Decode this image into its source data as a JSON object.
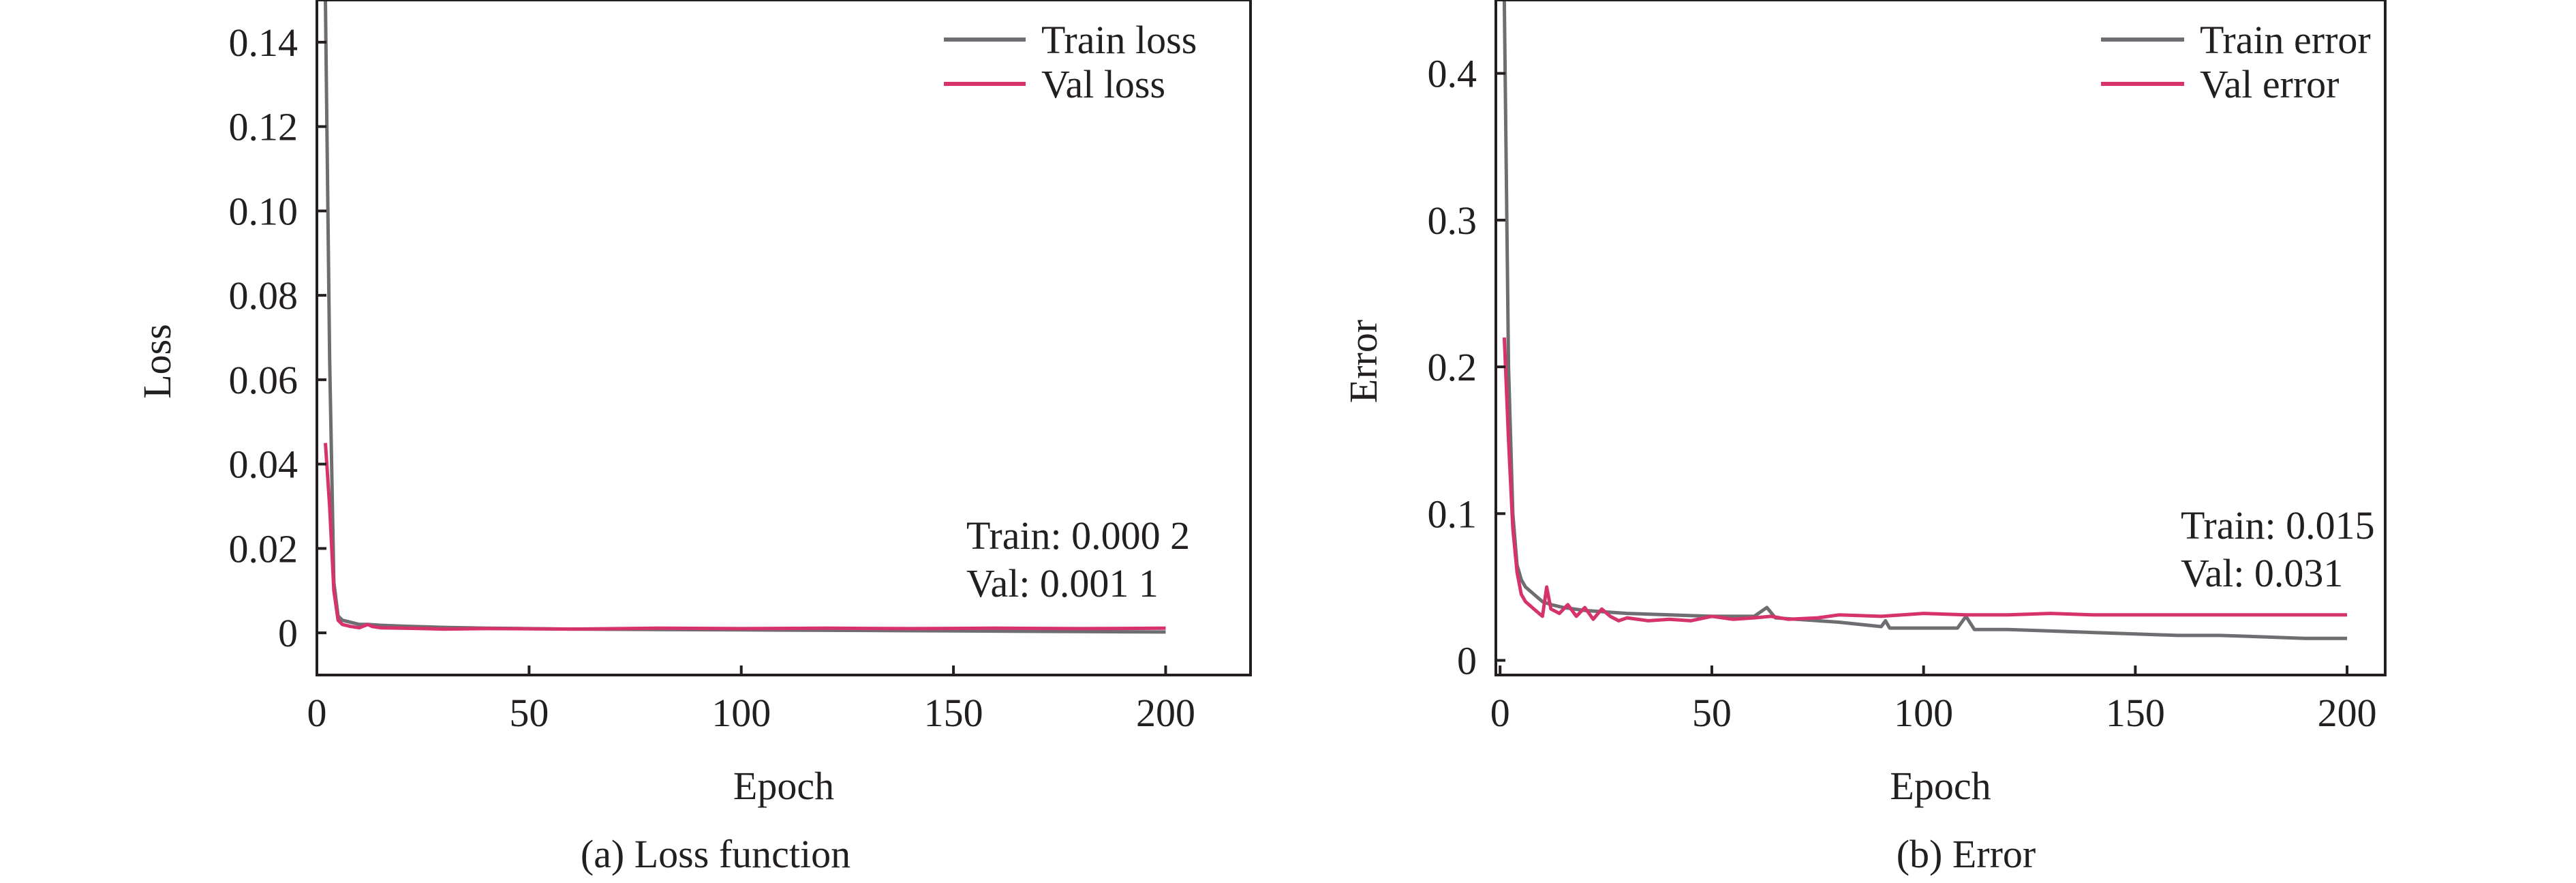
{
  "chart_data": [
    {
      "type": "line",
      "caption": "(a) Loss function",
      "xlabel": "Epoch",
      "ylabel": "Loss",
      "xlim": [
        0,
        220
      ],
      "ylim": [
        -0.01,
        0.15
      ],
      "xticks": [
        0,
        50,
        100,
        150,
        200
      ],
      "xtick_labels": [
        "0",
        "50",
        "100",
        "150",
        "200"
      ],
      "yticks": [
        0,
        0.02,
        0.04,
        0.06,
        0.08,
        0.1,
        0.12,
        0.14
      ],
      "ytick_labels": [
        "0",
        "0.02",
        "0.04",
        "0.06",
        "0.08",
        "0.10",
        "0.12",
        "0.14"
      ],
      "legend_position": "top-right",
      "grid": false,
      "annotations": [
        "Train: 0.000 2",
        "Val: 0.001 1"
      ],
      "series": [
        {
          "name": "Train loss",
          "color": "#6d6e71",
          "x": [
            2,
            3,
            4,
            5,
            6,
            8,
            10,
            12,
            15,
            20,
            30,
            40,
            60,
            80,
            100,
            120,
            140,
            160,
            180,
            200
          ],
          "y": [
            0.15,
            0.065,
            0.012,
            0.004,
            0.003,
            0.0025,
            0.002,
            0.002,
            0.0018,
            0.0016,
            0.0013,
            0.0011,
            0.0009,
            0.0008,
            0.0007,
            0.0006,
            0.0005,
            0.0004,
            0.0003,
            0.0002
          ]
        },
        {
          "name": "Val loss",
          "color": "#d6336c",
          "x": [
            2,
            3,
            4,
            5,
            6,
            8,
            10,
            12,
            13,
            15,
            20,
            25,
            30,
            40,
            60,
            80,
            100,
            120,
            140,
            160,
            180,
            200
          ],
          "y": [
            0.045,
            0.03,
            0.01,
            0.003,
            0.002,
            0.0015,
            0.0012,
            0.002,
            0.0015,
            0.0012,
            0.0011,
            0.001,
            0.0009,
            0.001,
            0.0009,
            0.0011,
            0.001,
            0.0011,
            0.001,
            0.0011,
            0.001,
            0.0011
          ]
        }
      ]
    },
    {
      "type": "line",
      "caption": "(b) Error",
      "xlabel": "Epoch",
      "ylabel": "Error",
      "xlim": [
        -1,
        209
      ],
      "ylim": [
        -0.01,
        0.45
      ],
      "xticks": [
        0,
        50,
        100,
        150,
        200
      ],
      "xtick_labels": [
        "0",
        "50",
        "100",
        "150",
        "200"
      ],
      "yticks": [
        0,
        0.1,
        0.2,
        0.3,
        0.4
      ],
      "ytick_labels": [
        "0",
        "0.1",
        "0.2",
        "0.3",
        "0.4"
      ],
      "legend_position": "top-right",
      "grid": false,
      "annotations": [
        "Train: 0.015",
        "Val: 0.031"
      ],
      "series": [
        {
          "name": "Train error",
          "color": "#6d6e71",
          "x": [
            1,
            2,
            3,
            4,
            5,
            6,
            8,
            10,
            12,
            15,
            20,
            25,
            30,
            40,
            50,
            60,
            63,
            65,
            70,
            80,
            90,
            91,
            92,
            100,
            108,
            110,
            112,
            120,
            130,
            140,
            150,
            160,
            170,
            180,
            190,
            200
          ],
          "y": [
            0.45,
            0.2,
            0.1,
            0.065,
            0.055,
            0.05,
            0.045,
            0.04,
            0.038,
            0.036,
            0.034,
            0.033,
            0.032,
            0.031,
            0.03,
            0.03,
            0.036,
            0.029,
            0.028,
            0.026,
            0.023,
            0.027,
            0.022,
            0.022,
            0.022,
            0.03,
            0.021,
            0.021,
            0.02,
            0.019,
            0.018,
            0.017,
            0.017,
            0.016,
            0.015,
            0.015
          ]
        },
        {
          "name": "Val error",
          "color": "#d6336c",
          "x": [
            1,
            2,
            3,
            4,
            5,
            6,
            8,
            10,
            11,
            12,
            14,
            16,
            18,
            20,
            22,
            24,
            26,
            28,
            30,
            35,
            40,
            45,
            50,
            55,
            60,
            64,
            68,
            75,
            80,
            90,
            100,
            110,
            120,
            130,
            140,
            150,
            160,
            170,
            180,
            190,
            200
          ],
          "y": [
            0.22,
            0.15,
            0.09,
            0.06,
            0.045,
            0.04,
            0.035,
            0.03,
            0.05,
            0.035,
            0.032,
            0.038,
            0.03,
            0.036,
            0.028,
            0.035,
            0.03,
            0.027,
            0.029,
            0.027,
            0.028,
            0.027,
            0.03,
            0.028,
            0.029,
            0.03,
            0.028,
            0.029,
            0.031,
            0.03,
            0.032,
            0.031,
            0.031,
            0.032,
            0.031,
            0.031,
            0.031,
            0.031,
            0.031,
            0.031,
            0.031
          ]
        }
      ]
    }
  ]
}
